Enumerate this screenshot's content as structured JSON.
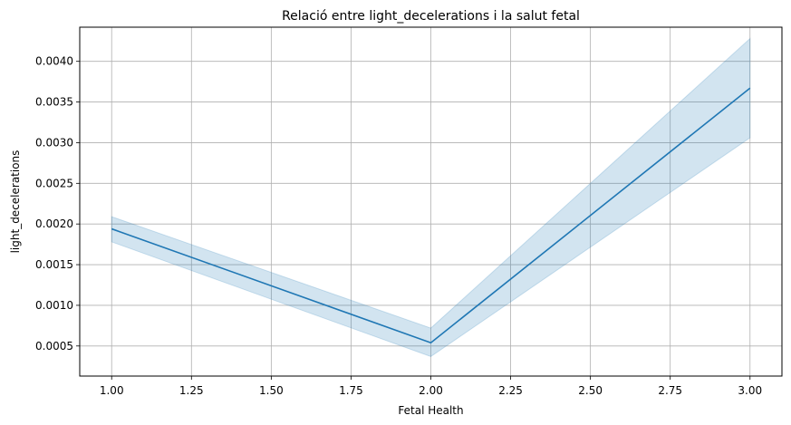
{
  "chart_data": {
    "type": "line",
    "title": "Relació entre light_decelerations i la salut fetal",
    "xlabel": "Fetal Health",
    "ylabel": "light_decelerations",
    "xlim": [
      0.9,
      3.1
    ],
    "ylim": [
      0.00013,
      0.00442
    ],
    "xticks": [
      "1.00",
      "1.25",
      "1.50",
      "1.75",
      "2.00",
      "2.25",
      "2.50",
      "2.75",
      "3.00"
    ],
    "yticks": [
      "0.0005",
      "0.0010",
      "0.0015",
      "0.0020",
      "0.0025",
      "0.0030",
      "0.0035",
      "0.0040"
    ],
    "grid": true,
    "colors": {
      "line": "#1f77b4",
      "band": "#1f77b4",
      "grid": "#b0b0b0"
    },
    "series": [
      {
        "x": [
          1.0,
          2.0,
          3.0
        ],
        "y": [
          0.00194,
          0.00054,
          0.00367
        ],
        "ci_low": [
          0.00178,
          0.00037,
          0.00306
        ],
        "ci_high": [
          0.00209,
          0.00072,
          0.00428
        ]
      }
    ]
  }
}
